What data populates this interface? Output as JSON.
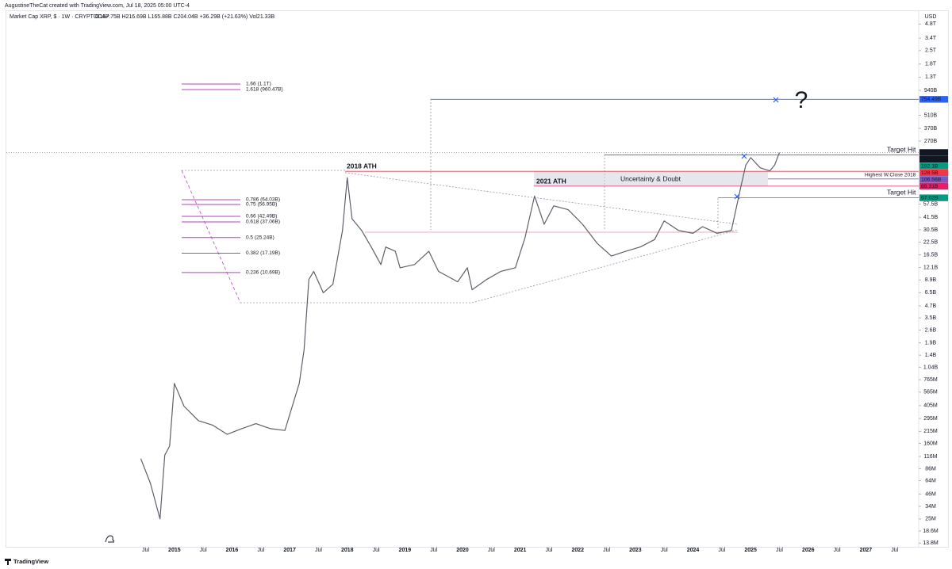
{
  "header": {
    "credit": "AugustineTheCat created with TradingView.com, Jul 18, 2025 05:00 UTC-4"
  },
  "footer": {
    "brand": "TradingView"
  },
  "chart_data": {
    "type": "line",
    "legend": {
      "symbol": "Market Cap XRP, $ · 1W · CRYPTOCAP",
      "ohlc": "O167.75B H216.69B L165.88B C204.04B +36.29B (+21.63%) Vol21.33B"
    },
    "y_unit": "USD",
    "log_scale": true,
    "grid": false,
    "xlim": [
      "2012-02",
      "2027-12"
    ],
    "ylim": [
      12600000,
      6600000000000
    ],
    "xticks": [
      {
        "value": "2014-07",
        "label": "Jul"
      },
      {
        "value": "2015-01",
        "label": "2015"
      },
      {
        "value": "2015-07",
        "label": "Jul"
      },
      {
        "value": "2016-01",
        "label": "2016"
      },
      {
        "value": "2016-07",
        "label": "Jul"
      },
      {
        "value": "2017-01",
        "label": "2017"
      },
      {
        "value": "2017-07",
        "label": "Jul"
      },
      {
        "value": "2018-01",
        "label": "2018"
      },
      {
        "value": "2018-07",
        "label": "Jul"
      },
      {
        "value": "2019-01",
        "label": "2019"
      },
      {
        "value": "2019-07",
        "label": "Jul"
      },
      {
        "value": "2020-01",
        "label": "2020"
      },
      {
        "value": "2020-07",
        "label": "Jul"
      },
      {
        "value": "2021-01",
        "label": "2021"
      },
      {
        "value": "2021-07",
        "label": "Jul"
      },
      {
        "value": "2022-01",
        "label": "2022"
      },
      {
        "value": "2022-07",
        "label": "Jul"
      },
      {
        "value": "2023-01",
        "label": "2023"
      },
      {
        "value": "2023-07",
        "label": "Jul"
      },
      {
        "value": "2024-01",
        "label": "2024"
      },
      {
        "value": "2024-07",
        "label": "Jul"
      },
      {
        "value": "2025-01",
        "label": "2025"
      },
      {
        "value": "2025-07",
        "label": "Jul"
      },
      {
        "value": "2026-01",
        "label": "2026"
      },
      {
        "value": "2026-07",
        "label": "Jul"
      },
      {
        "value": "2027-01",
        "label": "2027"
      },
      {
        "value": "2027-07",
        "label": "Jul"
      }
    ],
    "yticks": [
      {
        "value": 4800000000000,
        "label": "4.8T"
      },
      {
        "value": 3400000000000,
        "label": "3.4T"
      },
      {
        "value": 2500000000000,
        "label": "2.5T"
      },
      {
        "value": 1800000000000,
        "label": "1.8T"
      },
      {
        "value": 1300000000000,
        "label": "1.3T"
      },
      {
        "value": 940000000000,
        "label": "940B"
      },
      {
        "value": 510000000000,
        "label": "510B"
      },
      {
        "value": 370000000000,
        "label": "370B"
      },
      {
        "value": 270000000000,
        "label": "270B"
      },
      {
        "value": 57500000000,
        "label": "57.5B"
      },
      {
        "value": 41500000000,
        "label": "41.5B"
      },
      {
        "value": 30500000000,
        "label": "30.5B"
      },
      {
        "value": 22500000000,
        "label": "22.5B"
      },
      {
        "value": 16500000000,
        "label": "16.5B"
      },
      {
        "value": 12100000000,
        "label": "12.1B"
      },
      {
        "value": 8900000000,
        "label": "8.9B"
      },
      {
        "value": 6500000000,
        "label": "6.5B"
      },
      {
        "value": 4700000000,
        "label": "4.7B"
      },
      {
        "value": 3500000000,
        "label": "3.5B"
      },
      {
        "value": 2600000000,
        "label": "2.6B"
      },
      {
        "value": 1900000000,
        "label": "1.9B"
      },
      {
        "value": 1400000000,
        "label": "1.4B"
      },
      {
        "value": 1040000000,
        "label": "1.04B"
      },
      {
        "value": 765000000,
        "label": "765M"
      },
      {
        "value": 565000000,
        "label": "565M"
      },
      {
        "value": 405000000,
        "label": "405M"
      },
      {
        "value": 295000000,
        "label": "295M"
      },
      {
        "value": 215000000,
        "label": "215M"
      },
      {
        "value": 160000000,
        "label": "160M"
      },
      {
        "value": 116000000,
        "label": "116M"
      },
      {
        "value": 86000000,
        "label": "86M"
      },
      {
        "value": 64000000,
        "label": "64M"
      },
      {
        "value": 46000000,
        "label": "46M"
      },
      {
        "value": 34000000,
        "label": "34M"
      },
      {
        "value": 25000000,
        "label": "25M"
      },
      {
        "value": 18600000,
        "label": "18.6M"
      },
      {
        "value": 13800000,
        "label": "13.8M"
      }
    ],
    "x": [
      "2014-06",
      "2014-08",
      "2014-10",
      "2014-11",
      "2014-12",
      "2015-01",
      "2015-03",
      "2015-06",
      "2015-09",
      "2015-12",
      "2016-03",
      "2016-06",
      "2016-09",
      "2016-12",
      "2017-03",
      "2017-04",
      "2017-05",
      "2017-06",
      "2017-08",
      "2017-10",
      "2017-12",
      "2018-01",
      "2018-02",
      "2018-04",
      "2018-06",
      "2018-08",
      "2018-09",
      "2018-11",
      "2018-12",
      "2019-03",
      "2019-06",
      "2019-08",
      "2019-12",
      "2020-02",
      "2020-03",
      "2020-06",
      "2020-09",
      "2020-12",
      "2021-02",
      "2021-04",
      "2021-06",
      "2021-08",
      "2021-11",
      "2022-02",
      "2022-05",
      "2022-08",
      "2022-11",
      "2023-02",
      "2023-05",
      "2023-07",
      "2023-10",
      "2024-01",
      "2024-03",
      "2024-06",
      "2024-09",
      "2024-11",
      "2024-12",
      "2025-01",
      "2025-03",
      "2025-05",
      "2025-06",
      "2025-07"
    ],
    "series": [
      {
        "name": "Market Cap XRP",
        "color": "#5d606b",
        "values": [
          110000000,
          60000000,
          25000000,
          120000000,
          150000000,
          700000000,
          400000000,
          280000000,
          250000000,
          200000000,
          230000000,
          260000000,
          230000000,
          220000000,
          700000000,
          1600000000,
          9000000000,
          11000000000,
          6500000000,
          8000000000,
          30000000000,
          110000000000,
          40000000000,
          30000000000,
          20000000000,
          13000000000,
          20000000000,
          18000000000,
          12000000000,
          13000000000,
          18000000000,
          11000000000,
          8500000000,
          12000000000,
          7000000000,
          9000000000,
          11000000000,
          12000000000,
          25000000000,
          70000000000,
          35000000000,
          55000000000,
          50000000000,
          35000000000,
          22000000000,
          16000000000,
          18000000000,
          20000000000,
          24000000000,
          38000000000,
          30000000000,
          28000000000,
          33000000000,
          28000000000,
          30000000000,
          90000000000,
          150000000000,
          180000000000,
          140000000000,
          130000000000,
          150000000000,
          204040000000
        ]
      }
    ],
    "price_labels": [
      {
        "value": 754490000000,
        "label": "754.49B",
        "color": "#2962ff"
      },
      {
        "value": 204040000000,
        "label": "204.04B",
        "color": "#131722"
      },
      {
        "value": 192100000000,
        "label": "192.1B",
        "color": "#089981"
      },
      {
        "value": 128500000000,
        "label": "128.5B",
        "color": "#f23645"
      },
      {
        "value": 106560000000,
        "label": "106.56B",
        "color": "#7e57c2"
      },
      {
        "value": 89310000000,
        "label": "89.31B",
        "color": "#e91e63"
      },
      {
        "value": 67020000000,
        "label": "67.02B",
        "color": "#089981"
      }
    ],
    "countdown": "2d 15h",
    "fib_color": "#b83fc6",
    "fib_levels": [
      {
        "value": 1100000000000,
        "label": "1.66 (1.1T)"
      },
      {
        "value": 960470000000,
        "label": "1.618 (960.47B)"
      },
      {
        "value": 64030000000,
        "label": "0.786 (64.03B)"
      },
      {
        "value": 56950000000,
        "label": "0.75 (56.95B)"
      },
      {
        "value": 42490000000,
        "label": "0.66 (42.49B)"
      },
      {
        "value": 37060000000,
        "label": "0.618 (37.06B)"
      },
      {
        "value": 25240000000,
        "label": "0.5 (25.24B)"
      },
      {
        "value": 17190000000,
        "label": "0.382 (17.19B)"
      },
      {
        "value": 10690000000,
        "label": "0.236 (10.69B)"
      }
    ],
    "annotations": [
      {
        "text": "2018 ATH",
        "color": "#e0315b"
      },
      {
        "text": "2021 ATH",
        "color": "#e0315b"
      },
      {
        "text": "Uncertainty & Doubt",
        "color": "#555a66"
      },
      {
        "text": "Target Hit",
        "color": "#089981"
      },
      {
        "text": "Target Hit",
        "color": "#089981"
      },
      {
        "text": "Highest W.Close 2018",
        "color": "#7b2fa8"
      },
      {
        "text": "?",
        "color": "#2962ff"
      }
    ]
  }
}
